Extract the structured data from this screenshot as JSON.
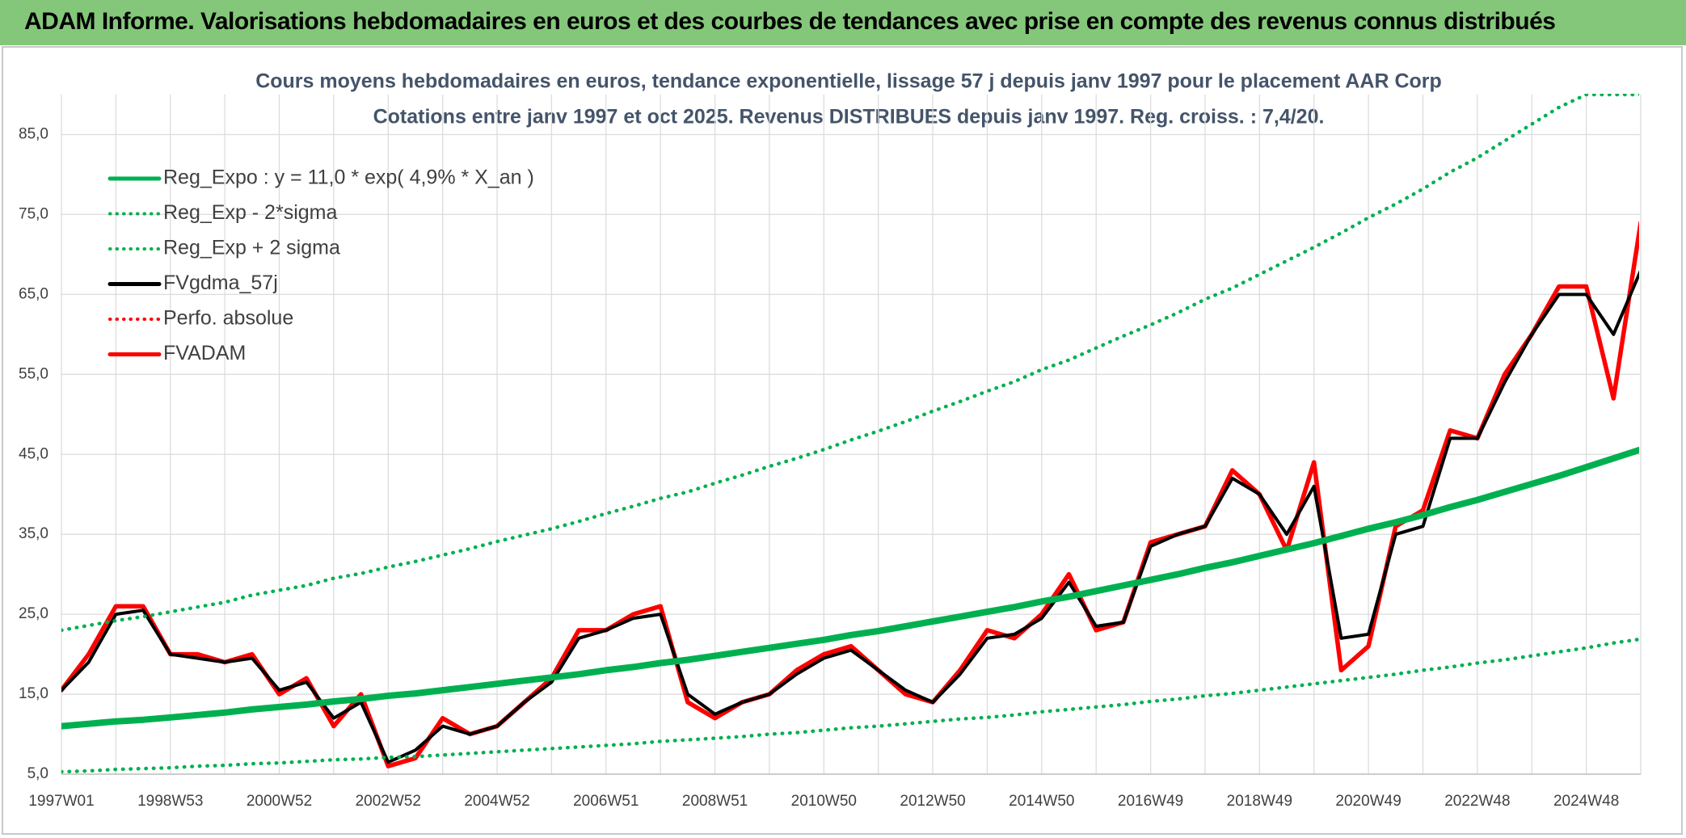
{
  "header": {
    "title": "ADAM Informe. Valorisations hebdomadaires en euros et des courbes de tendances avec prise en compte des revenus connus distribués"
  },
  "chart_data": {
    "type": "line",
    "title": "Cours moyens hebdomadaires en euros, tendance exponentielle, lissage 57 j depuis janv 1997 pour le placement AAR Corp",
    "subtitle": "Cotations entre janv 1997 et oct 2025. Revenus DISTRIBUES depuis janv 1997. Reg. croiss. : 7,4/20.",
    "categories": [
      "1997W01",
      null,
      null,
      null,
      "1998W53",
      null,
      null,
      null,
      "2000W52",
      null,
      null,
      null,
      "2002W52",
      null,
      null,
      null,
      "2004W52",
      null,
      null,
      null,
      "2006W51",
      null,
      null,
      null,
      "2008W51",
      null,
      null,
      null,
      "2010W50",
      null,
      null,
      null,
      "2012W50",
      null,
      null,
      null,
      "2014W50",
      null,
      null,
      null,
      "2016W49",
      null,
      null,
      null,
      "2018W49",
      null,
      null,
      null,
      "2020W49",
      null,
      null,
      null,
      "2022W48",
      null,
      null,
      null,
      "2024W48",
      null,
      null
    ],
    "ylim": [
      5,
      90
    ],
    "yticks": [
      {
        "value": 5,
        "label": "5,0"
      },
      {
        "value": 15,
        "label": "15,0"
      },
      {
        "value": 25,
        "label": "25,0"
      },
      {
        "value": 35,
        "label": "35,0"
      },
      {
        "value": 45,
        "label": "45,0"
      },
      {
        "value": 55,
        "label": "55,0"
      },
      {
        "value": 65,
        "label": "65,0"
      },
      {
        "value": 75,
        "label": "75,0"
      },
      {
        "value": 85,
        "label": "85,0"
      }
    ],
    "grid": true,
    "legend": "top-left",
    "series": [
      {
        "name": "Reg_Expo : y = 11,0 * exp( 4,9% *  X_an )",
        "color": "#00b050",
        "style": "solid",
        "values": [
          11.0,
          11.3,
          11.6,
          11.8,
          12.1,
          12.4,
          12.7,
          13.1,
          13.4,
          13.7,
          14.1,
          14.4,
          14.8,
          15.1,
          15.5,
          15.9,
          16.3,
          16.7,
          17.1,
          17.5,
          18.0,
          18.4,
          18.9,
          19.3,
          19.8,
          20.3,
          20.8,
          21.3,
          21.8,
          22.4,
          22.9,
          23.5,
          24.1,
          24.7,
          25.3,
          25.9,
          26.6,
          27.2,
          27.9,
          28.6,
          29.3,
          30.0,
          30.8,
          31.5,
          32.3,
          33.1,
          33.9,
          34.8,
          35.7,
          36.5,
          37.4,
          38.4,
          39.3,
          40.3,
          41.3,
          42.3,
          43.4,
          44.5,
          45.6
        ]
      },
      {
        "name": "Reg_Exp - 2*sigma",
        "color": "#00b050",
        "style": "dotted",
        "values": [
          5.3,
          5.4,
          5.6,
          5.7,
          5.8,
          6.0,
          6.1,
          6.3,
          6.4,
          6.6,
          6.8,
          6.9,
          7.1,
          7.2,
          7.4,
          7.6,
          7.8,
          8.0,
          8.2,
          8.4,
          8.6,
          8.8,
          9.1,
          9.3,
          9.5,
          9.7,
          10.0,
          10.2,
          10.5,
          10.8,
          11.0,
          11.3,
          11.6,
          11.9,
          12.1,
          12.4,
          12.8,
          13.1,
          13.4,
          13.7,
          14.1,
          14.4,
          14.8,
          15.1,
          15.5,
          15.9,
          16.3,
          16.7,
          17.1,
          17.5,
          18.0,
          18.4,
          18.9,
          19.3,
          19.8,
          20.3,
          20.8,
          21.4,
          21.9
        ]
      },
      {
        "name": "Reg_Exp + 2 sigma",
        "color": "#00b050",
        "style": "dotted",
        "values": [
          23.0,
          23.6,
          24.2,
          24.7,
          25.3,
          25.9,
          26.5,
          27.4,
          28.0,
          28.6,
          29.5,
          30.1,
          30.9,
          31.6,
          32.4,
          33.2,
          34.1,
          34.9,
          35.7,
          36.6,
          37.6,
          38.5,
          39.5,
          40.3,
          41.4,
          42.4,
          43.5,
          44.5,
          45.6,
          46.8,
          47.9,
          49.1,
          50.4,
          51.6,
          52.9,
          54.1,
          55.6,
          56.8,
          58.3,
          59.8,
          61.2,
          62.7,
          64.4,
          65.8,
          67.5,
          69.2,
          70.9,
          72.7,
          74.6,
          76.3,
          78.2,
          80.3,
          82.1,
          84.2,
          86.3,
          88.4,
          90,
          90,
          90
        ]
      },
      {
        "name": "FVgdma_57j",
        "color": "#000000",
        "style": "solid",
        "values": [
          15.5,
          19,
          25,
          25.5,
          20,
          19.5,
          19,
          19.5,
          15.5,
          16.5,
          12,
          14,
          6.5,
          8,
          11,
          10,
          11,
          14,
          16.5,
          22,
          23,
          24.5,
          25,
          15,
          12.5,
          14,
          15,
          17.5,
          19.5,
          20.5,
          18,
          15.5,
          14,
          17.5,
          22,
          22.5,
          24.5,
          29,
          23.5,
          24,
          33.5,
          35,
          36,
          42,
          40,
          35,
          41,
          22,
          22.5,
          35,
          36,
          47,
          47,
          54,
          60,
          65,
          65,
          60,
          68
        ]
      },
      {
        "name": "Perfo. absolue",
        "color": "#ff0000",
        "style": "dotted",
        "values": [
          15.5,
          20,
          26,
          26,
          20,
          20,
          19,
          20,
          15,
          17,
          11,
          15,
          6,
          7,
          12,
          10,
          11,
          14,
          17,
          23,
          23,
          25,
          26,
          14,
          12,
          14,
          15,
          18,
          20,
          21,
          18,
          15,
          14,
          18,
          23,
          22,
          25,
          30,
          23,
          24,
          34,
          35,
          36,
          43,
          40,
          33,
          44,
          18,
          21,
          36,
          38,
          48,
          47,
          55,
          60,
          66,
          66,
          52,
          74
        ]
      },
      {
        "name": "FVADAM",
        "color": "#ff0000",
        "style": "solid",
        "values": [
          15.5,
          20,
          26,
          26,
          20,
          20,
          19,
          20,
          15,
          17,
          11,
          15,
          6,
          7,
          12,
          10,
          11,
          14,
          17,
          23,
          23,
          25,
          26,
          14,
          12,
          14,
          15,
          18,
          20,
          21,
          18,
          15,
          14,
          18,
          23,
          22,
          25,
          30,
          23,
          24,
          34,
          35,
          36,
          43,
          40,
          33,
          44,
          18,
          21,
          36,
          38,
          48,
          47,
          55,
          60,
          66,
          66,
          52,
          74
        ]
      }
    ]
  }
}
